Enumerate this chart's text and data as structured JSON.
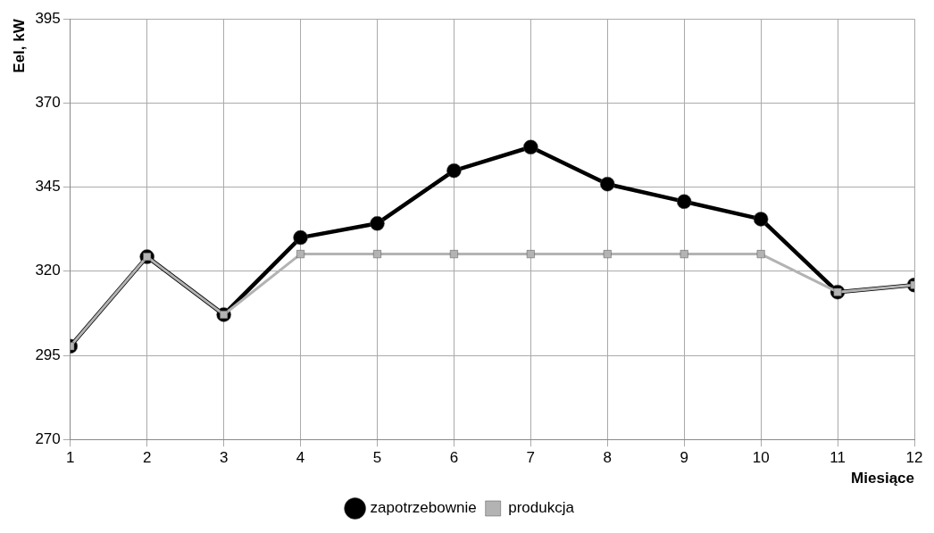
{
  "chart_data": {
    "type": "line",
    "xlabel": "Miesiące",
    "ylabel": "Eel, kW",
    "x": [
      1,
      2,
      3,
      4,
      5,
      6,
      7,
      8,
      9,
      10,
      11,
      12
    ],
    "xlim": [
      1,
      12
    ],
    "xticks": [
      1,
      2,
      3,
      4,
      5,
      6,
      7,
      8,
      9,
      10,
      11,
      12
    ],
    "ylim": [
      270,
      395
    ],
    "yticks": [
      270,
      295,
      320,
      345,
      370,
      395
    ],
    "grid": true,
    "legend": "bottom",
    "line_style": "solid",
    "series": [
      {
        "name": "zapotrzebownie",
        "color": "#000000",
        "marker": "circle",
        "values": [
          297.7,
          324.3,
          307.1,
          330,
          334.2,
          349.9,
          356.9,
          345.9,
          340.7,
          335.5,
          313.8,
          315.9
        ]
      },
      {
        "name": "produkcja",
        "color": "#b3b3b3",
        "marker": "square",
        "values": [
          297.7,
          324.3,
          307.1,
          325.1,
          325.1,
          325.1,
          325.1,
          325.1,
          325.1,
          325.1,
          313.8,
          315.9
        ]
      }
    ]
  }
}
